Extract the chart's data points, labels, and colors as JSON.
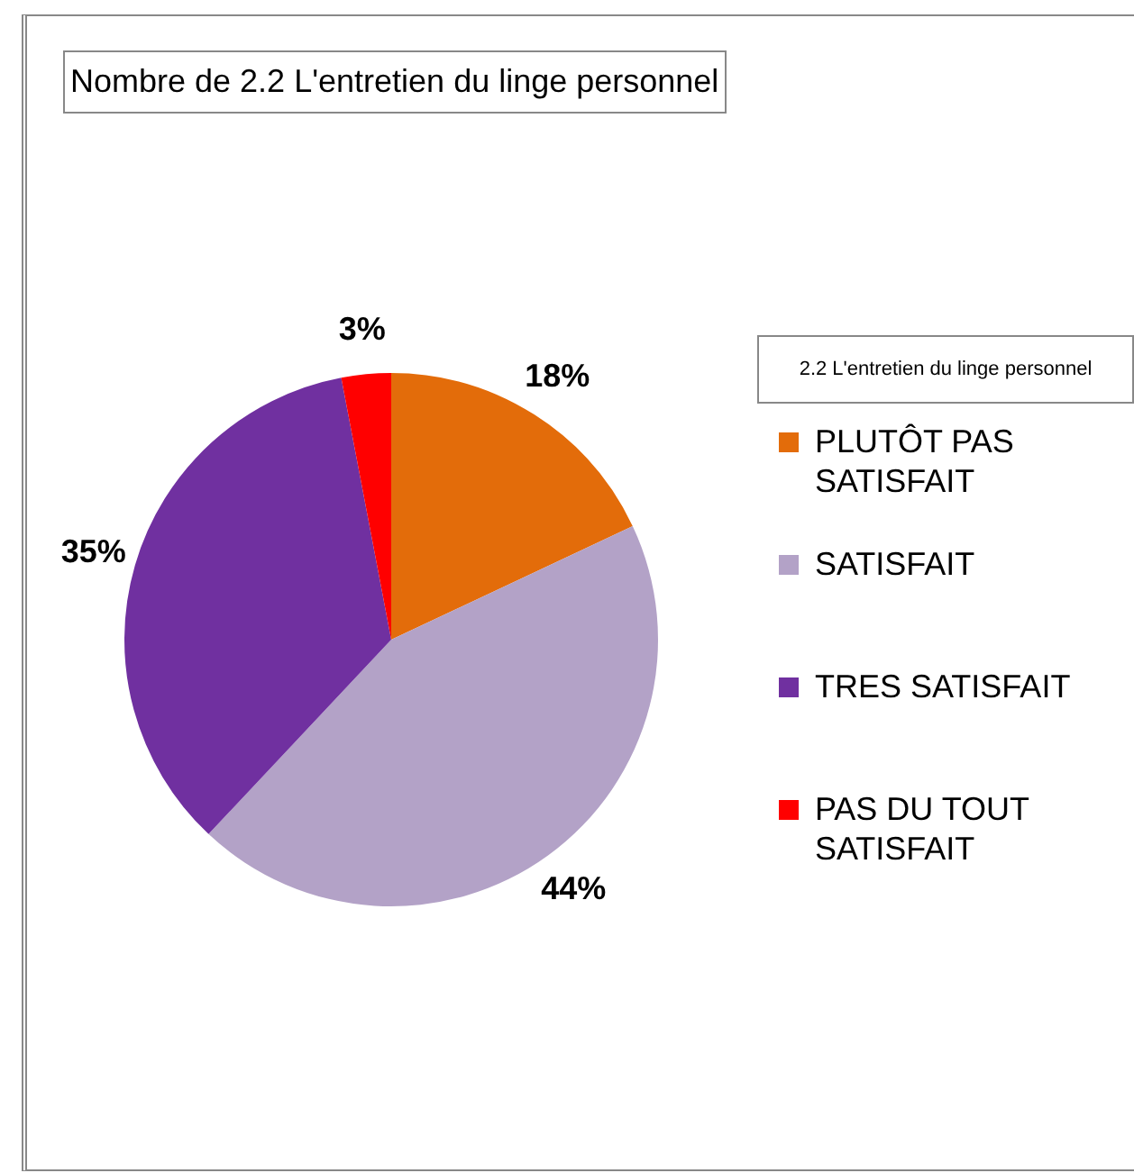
{
  "chart_data": {
    "type": "pie",
    "title": "Nombre de 2.2 L'entretien du linge personnel",
    "legend_title": "2.2 L'entretien du linge personnel",
    "legend": "right",
    "categories": [
      "PLUTÔT PAS SATISFAIT",
      "SATISFAIT",
      "TRES SATISFAIT",
      "PAS DU TOUT SATISFAIT"
    ],
    "values": [
      18,
      44,
      35,
      3
    ],
    "colors": [
      "#e36c0a",
      "#b3a2c7",
      "#7030a0",
      "#ff0000"
    ],
    "value_labels": [
      "18%",
      "44%",
      "35%",
      "3%"
    ]
  }
}
